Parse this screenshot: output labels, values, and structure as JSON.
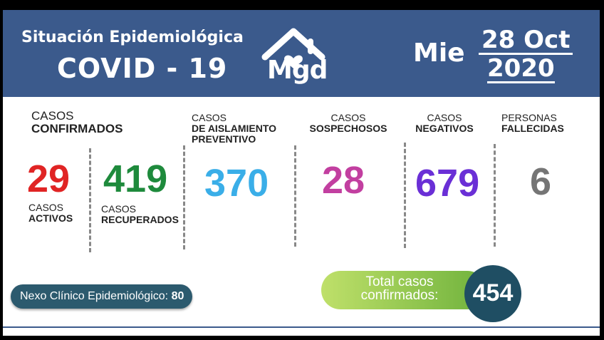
{
  "header": {
    "subtitle": "Situación Epidemiológica",
    "title": "COVID - 19",
    "logo_text": "Mgd",
    "day": "Mie",
    "date_line1": "28 Oct",
    "date_line2": "2020",
    "bg_color": "#3b5a8c"
  },
  "confirmados": {
    "line1": "CASOS",
    "line2": "CONFIRMADOS"
  },
  "activos": {
    "value": "29",
    "line1": "CASOS",
    "line2": "ACTIVOS",
    "color": "#e02424"
  },
  "recuperados": {
    "value": "419",
    "line1": "CASOS",
    "line2": "RECUPERADOS",
    "color": "#1e8a3c"
  },
  "aislamiento": {
    "line1": "CASOS",
    "line2": "DE AISLAMIENTO",
    "line3": "PREVENTIVO",
    "value": "370",
    "color": "#3aaee8"
  },
  "sospechosos": {
    "line1": "CASOS",
    "line2": "SOSPECHOSOS",
    "value": "28",
    "color": "#c23fa0"
  },
  "negativos": {
    "line1": "CASOS",
    "line2": "NEGATIVOS",
    "value": "679",
    "color": "#6a2fd6"
  },
  "fallecidas": {
    "line1": "PERSONAS",
    "line2": "FALLECIDAS",
    "value": "6",
    "color": "#757575"
  },
  "nexo": {
    "label": "Nexo Clínico Epidemiológico:",
    "value": "80"
  },
  "total": {
    "line1": "Total casos",
    "line2": "confirmados:",
    "value": "454"
  },
  "icons": {
    "logo": "house-heart-icon"
  }
}
